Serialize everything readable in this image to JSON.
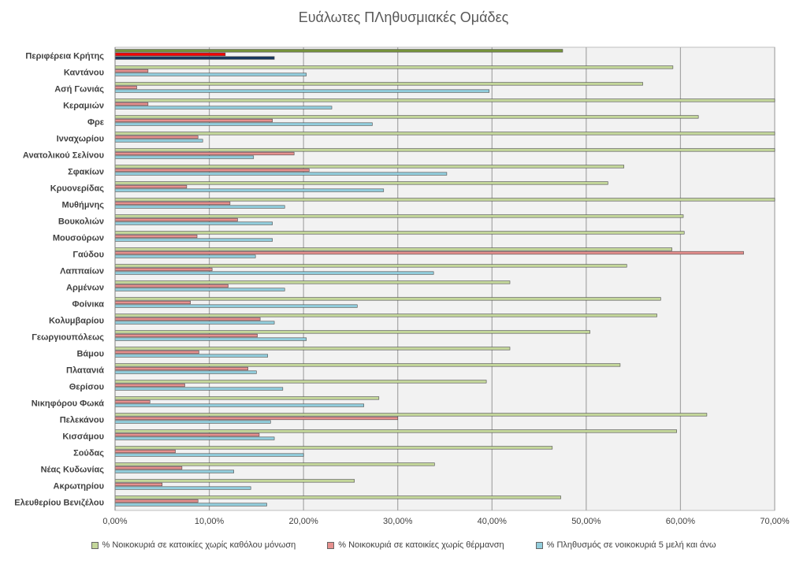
{
  "chart_data": {
    "type": "bar",
    "orientation": "horizontal",
    "title": "Ευάλωτες ΠΛηθυσμιακές Ομάδες",
    "xlabel": "",
    "ylabel": "",
    "xlim": [
      0,
      70
    ],
    "x_ticks": [
      "0,00%",
      "10,00%",
      "20,00%",
      "30,00%",
      "40,00%",
      "50,00%",
      "60,00%",
      "70,00%"
    ],
    "grid": true,
    "legend_position": "bottom",
    "categories": [
      "Περιφέρεια Κρήτης",
      "Καντάνου",
      "Ασή Γωνιάς",
      "Κεραμιών",
      "Φρε",
      "Ινναχωρίου",
      "Ανατολικού Σελίνου",
      "Σφακίων",
      "Κρυονερίδας",
      "Μυθήμνης",
      "Βουκολιών",
      "Μουσούρων",
      "Γαύδου",
      "Λαππαίων",
      "Αρμένων",
      "Φοίνικα",
      "Κολυμβαρίου",
      "Γεωργιουπόλεως",
      "Βάμου",
      "Πλατανιά",
      "Θερίσου",
      "Νικηφόρου Φωκά",
      "Πελεκάνου",
      "Κισσάμου",
      "Σούδας",
      "Νέας Κυδωνίας",
      "Ακρωτηρίου",
      "Ελευθερίου Βενιζέλου"
    ],
    "series": [
      {
        "name": "% Νοικοκυριά σε κατοικίες χωρίς καθόλου μόνωση",
        "color": "#c4d79b",
        "highlight_color": "#76923c",
        "values": [
          47.5,
          59.2,
          56.0,
          70.0,
          61.9,
          70.0,
          70.0,
          54.0,
          52.3,
          70.0,
          60.3,
          60.4,
          59.1,
          54.3,
          41.9,
          57.9,
          57.5,
          50.4,
          41.9,
          53.6,
          39.4,
          28.0,
          62.8,
          59.6,
          46.4,
          33.9,
          25.4,
          47.3
        ]
      },
      {
        "name": "% Νοικοκυριά σε κατοικίες χωρίς θέρμανση",
        "color": "#e6908e",
        "highlight_color": "#ff0000",
        "values": [
          11.7,
          3.5,
          2.3,
          3.5,
          16.7,
          8.8,
          19.0,
          20.6,
          7.6,
          12.2,
          13.0,
          8.7,
          66.7,
          10.3,
          12.0,
          8.0,
          15.4,
          15.1,
          8.9,
          14.1,
          7.4,
          3.7,
          30.0,
          15.3,
          6.4,
          7.1,
          5.0,
          8.8
        ]
      },
      {
        "name": "% Πληθυσμός σε νοικοκυριά 5 μελή και άνω",
        "color": "#92cddc",
        "highlight_color": "#17375e",
        "values": [
          16.9,
          20.3,
          39.7,
          23.0,
          27.3,
          9.3,
          14.7,
          35.2,
          28.5,
          18.0,
          16.7,
          16.7,
          14.9,
          33.8,
          18.0,
          25.7,
          16.9,
          20.3,
          16.2,
          15.0,
          17.8,
          26.4,
          16.5,
          16.9,
          20.0,
          12.6,
          14.4,
          16.1
        ]
      }
    ]
  }
}
